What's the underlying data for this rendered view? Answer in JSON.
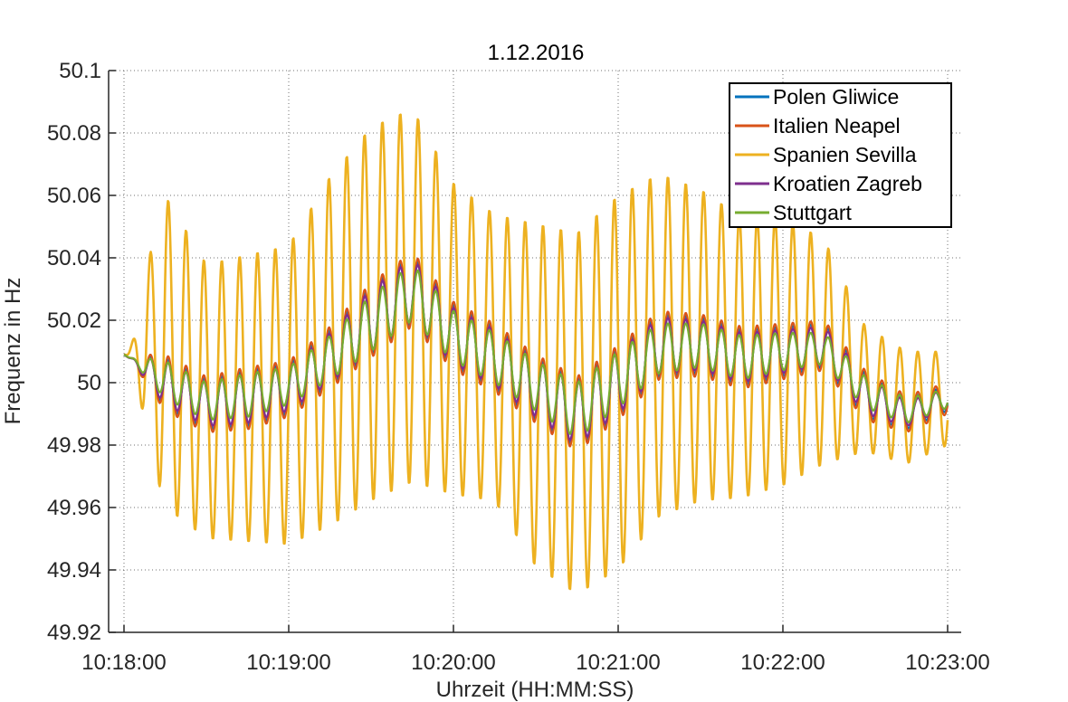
{
  "chart_data": {
    "type": "line",
    "title": "1.12.2016",
    "xlabel": "Uhrzeit (HH:MM:SS)",
    "ylabel": "Frequenz in Hz",
    "x_range": [
      "10:18:00",
      "10:23:00"
    ],
    "xlim_seconds": [
      0,
      300
    ],
    "ylim": [
      49.92,
      50.1
    ],
    "x_ticks": [
      "10:18:00",
      "10:19:00",
      "10:20:00",
      "10:21:00",
      "10:22:00",
      "10:23:00"
    ],
    "y_ticks": [
      "49.92",
      "49.94",
      "49.96",
      "49.98",
      "50",
      "50.02",
      "50.04",
      "50.06",
      "50.08",
      "50.1"
    ],
    "grid": true,
    "legend_position": "top-right",
    "oscillation_period_seconds": 6.5,
    "series": [
      {
        "name": "Polen Gliwice",
        "color": "#0072BD",
        "x": [
          "10:18:00",
          "10:18:15",
          "10:18:30",
          "10:18:45",
          "10:19:00",
          "10:19:15",
          "10:19:30",
          "10:19:45",
          "10:20:00",
          "10:20:15",
          "10:20:30",
          "10:20:45",
          "10:21:00",
          "10:21:15",
          "10:21:30",
          "10:21:45",
          "10:22:00",
          "10:22:15",
          "10:22:30",
          "10:22:45",
          "10:23:00"
        ],
        "y": [
          50.009,
          50.0,
          49.993,
          49.995,
          49.998,
          50.008,
          50.02,
          50.03,
          50.015,
          50.008,
          49.998,
          49.99,
          50.0,
          50.012,
          50.012,
          50.008,
          50.01,
          50.012,
          49.996,
          49.99,
          49.995
        ],
        "amplitude": [
          0.0,
          0.008,
          0.008,
          0.009,
          0.008,
          0.009,
          0.011,
          0.011,
          0.01,
          0.01,
          0.01,
          0.011,
          0.011,
          0.01,
          0.009,
          0.009,
          0.008,
          0.007,
          0.007,
          0.005,
          0.004
        ]
      },
      {
        "name": "Italien Neapel",
        "color": "#D95319",
        "x": [
          "10:18:00",
          "10:18:15",
          "10:18:30",
          "10:18:45",
          "10:19:00",
          "10:19:15",
          "10:19:30",
          "10:19:45",
          "10:20:00",
          "10:20:15",
          "10:20:30",
          "10:20:45",
          "10:21:00",
          "10:21:15",
          "10:21:30",
          "10:21:45",
          "10:22:00",
          "10:22:15",
          "10:22:30",
          "10:22:45",
          "10:23:00"
        ],
        "y": [
          50.009,
          50.0,
          49.993,
          49.995,
          49.998,
          50.008,
          50.02,
          50.03,
          50.015,
          50.008,
          49.998,
          49.99,
          50.0,
          50.012,
          50.012,
          50.008,
          50.01,
          50.012,
          49.996,
          49.99,
          49.995
        ],
        "amplitude": [
          0.0,
          0.009,
          0.009,
          0.01,
          0.009,
          0.01,
          0.012,
          0.012,
          0.011,
          0.011,
          0.011,
          0.012,
          0.012,
          0.011,
          0.01,
          0.01,
          0.009,
          0.008,
          0.008,
          0.006,
          0.005
        ]
      },
      {
        "name": "Spanien Sevilla",
        "color": "#EDB120",
        "x": [
          "10:18:00",
          "10:18:15",
          "10:18:30",
          "10:18:45",
          "10:19:00",
          "10:19:15",
          "10:19:30",
          "10:19:45",
          "10:20:00",
          "10:20:15",
          "10:20:30",
          "10:20:45",
          "10:21:00",
          "10:21:15",
          "10:21:30",
          "10:21:45",
          "10:22:00",
          "10:22:15",
          "10:22:30",
          "10:22:45",
          "10:23:00"
        ],
        "y": [
          50.009,
          50.01,
          49.994,
          49.995,
          49.996,
          50.01,
          50.022,
          50.028,
          50.014,
          50.008,
          49.996,
          49.99,
          50.0,
          50.012,
          50.012,
          50.008,
          50.01,
          50.01,
          49.998,
          49.992,
          49.995
        ],
        "amplitude": [
          0.0,
          0.05,
          0.044,
          0.046,
          0.048,
          0.056,
          0.06,
          0.06,
          0.05,
          0.046,
          0.055,
          0.058,
          0.06,
          0.055,
          0.05,
          0.045,
          0.043,
          0.036,
          0.02,
          0.018,
          0.015
        ]
      },
      {
        "name": "Kroatien Zagreb",
        "color": "#7E2F8E",
        "x": [
          "10:18:00",
          "10:18:15",
          "10:18:30",
          "10:18:45",
          "10:19:00",
          "10:19:15",
          "10:19:30",
          "10:19:45",
          "10:20:00",
          "10:20:15",
          "10:20:30",
          "10:20:45",
          "10:21:00",
          "10:21:15",
          "10:21:30",
          "10:21:45",
          "10:22:00",
          "10:22:15",
          "10:22:30",
          "10:22:45",
          "10:23:00"
        ],
        "y": [
          50.009,
          50.0,
          49.993,
          49.995,
          49.998,
          50.008,
          50.02,
          50.03,
          50.015,
          50.008,
          49.998,
          49.99,
          50.0,
          50.012,
          50.012,
          50.008,
          50.01,
          50.012,
          49.996,
          49.99,
          49.995
        ],
        "amplitude": [
          0.0,
          0.007,
          0.007,
          0.008,
          0.007,
          0.008,
          0.01,
          0.01,
          0.009,
          0.009,
          0.009,
          0.01,
          0.01,
          0.009,
          0.008,
          0.008,
          0.007,
          0.006,
          0.006,
          0.004,
          0.003
        ]
      },
      {
        "name": "Stuttgart",
        "color": "#77AC30",
        "x": [
          "10:18:00",
          "10:18:15",
          "10:18:30",
          "10:18:45",
          "10:19:00",
          "10:19:15",
          "10:19:30",
          "10:19:45",
          "10:20:00",
          "10:20:15",
          "10:20:30",
          "10:20:45",
          "10:21:00",
          "10:21:15",
          "10:21:30",
          "10:21:45",
          "10:22:00",
          "10:22:15",
          "10:22:30",
          "10:22:45",
          "10:23:00"
        ],
        "y": [
          50.009,
          50.001,
          49.994,
          49.996,
          49.999,
          50.008,
          50.019,
          50.029,
          50.015,
          50.008,
          49.999,
          49.991,
          50.001,
          50.011,
          50.012,
          50.008,
          50.01,
          50.011,
          49.997,
          49.991,
          49.995
        ],
        "amplitude": [
          0.0,
          0.006,
          0.006,
          0.007,
          0.006,
          0.007,
          0.009,
          0.009,
          0.008,
          0.008,
          0.008,
          0.009,
          0.009,
          0.008,
          0.007,
          0.007,
          0.006,
          0.005,
          0.005,
          0.004,
          0.003
        ]
      }
    ]
  }
}
